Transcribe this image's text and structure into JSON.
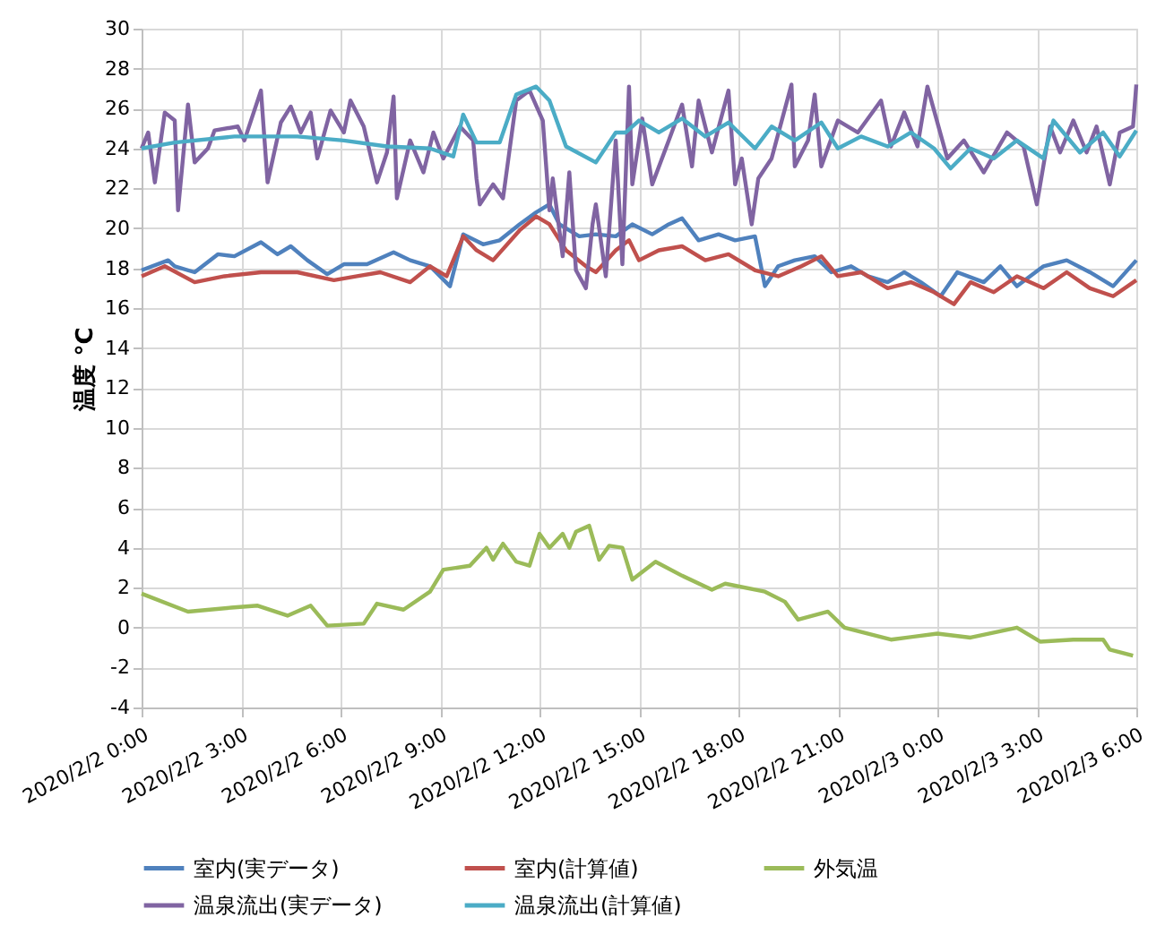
{
  "chart_data": {
    "type": "line",
    "ylabel": "温度 °C",
    "xlim": [
      "2020-02-02T00:00",
      "2020-02-03T06:00"
    ],
    "ylim": [
      -4,
      30
    ],
    "xticks": [
      {
        "value": "2020-02-02T00:00",
        "label": "2020/2/2 0:00"
      },
      {
        "value": "2020-02-02T03:00",
        "label": "2020/2/2 3:00"
      },
      {
        "value": "2020-02-02T06:00",
        "label": "2020/2/2 6:00"
      },
      {
        "value": "2020-02-02T09:00",
        "label": "2020/2/2 9:00"
      },
      {
        "value": "2020-02-02T12:00",
        "label": "2020/2/2 12:00"
      },
      {
        "value": "2020-02-02T15:00",
        "label": "2020/2/2 15:00"
      },
      {
        "value": "2020-02-02T18:00",
        "label": "2020/2/2 18:00"
      },
      {
        "value": "2020-02-02T21:00",
        "label": "2020/2/2 21:00"
      },
      {
        "value": "2020-02-03T00:00",
        "label": "2020/2/3 0:00"
      },
      {
        "value": "2020-02-03T03:00",
        "label": "2020/2/3 3:00"
      },
      {
        "value": "2020-02-03T06:00",
        "label": "2020/2/3 6:00"
      }
    ],
    "yticks": [
      -4,
      -2,
      0,
      2,
      4,
      6,
      8,
      10,
      12,
      14,
      16,
      18,
      20,
      22,
      24,
      26,
      28,
      30
    ],
    "grid": true,
    "legend": "bottom",
    "line_style": "solid",
    "series": [
      {
        "name": "室内(実データ)",
        "color": "#4f81bd",
        "x": [
          "2020-02-02T00:00",
          "2020-02-02T00:48",
          "2020-02-02T01:00",
          "2020-02-02T01:36",
          "2020-02-02T02:18",
          "2020-02-02T02:48",
          "2020-02-02T03:36",
          "2020-02-02T04:06",
          "2020-02-02T04:30",
          "2020-02-02T05:00",
          "2020-02-02T05:36",
          "2020-02-02T06:06",
          "2020-02-02T06:48",
          "2020-02-02T07:36",
          "2020-02-02T08:06",
          "2020-02-02T08:42",
          "2020-02-02T09:18",
          "2020-02-02T09:42",
          "2020-02-02T10:18",
          "2020-02-02T10:48",
          "2020-02-02T11:24",
          "2020-02-02T11:54",
          "2020-02-02T12:18",
          "2020-02-02T12:36",
          "2020-02-02T13:12",
          "2020-02-02T13:42",
          "2020-02-02T14:18",
          "2020-02-02T14:48",
          "2020-02-02T15:24",
          "2020-02-02T15:54",
          "2020-02-02T16:18",
          "2020-02-02T16:48",
          "2020-02-02T17:24",
          "2020-02-02T17:54",
          "2020-02-02T18:30",
          "2020-02-02T18:48",
          "2020-02-02T19:12",
          "2020-02-02T19:42",
          "2020-02-02T20:18",
          "2020-02-02T20:48",
          "2020-02-02T21:24",
          "2020-02-02T21:54",
          "2020-02-02T22:30",
          "2020-02-02T23:00",
          "2020-02-02T23:30",
          "2020-02-03T00:06",
          "2020-02-03T00:36",
          "2020-02-03T01:24",
          "2020-02-03T01:54",
          "2020-02-03T02:24",
          "2020-02-03T03:12",
          "2020-02-03T03:54",
          "2020-02-03T04:36",
          "2020-02-03T05:18",
          "2020-02-03T06:00"
        ],
        "values": [
          17.9,
          18.4,
          18.1,
          17.8,
          18.7,
          18.6,
          19.3,
          18.7,
          19.1,
          18.4,
          17.7,
          18.2,
          18.2,
          18.8,
          18.4,
          18.1,
          17.1,
          19.7,
          19.2,
          19.4,
          20.2,
          20.8,
          21.2,
          20.2,
          19.6,
          19.7,
          19.6,
          20.2,
          19.7,
          20.2,
          20.5,
          19.4,
          19.7,
          19.4,
          19.6,
          17.1,
          18.1,
          18.4,
          18.6,
          17.8,
          18.1,
          17.6,
          17.3,
          17.8,
          17.3,
          16.6,
          17.8,
          17.3,
          18.1,
          17.1,
          18.1,
          18.4,
          17.8,
          17.1,
          18.4
        ]
      },
      {
        "name": "室内(計算値)",
        "color": "#c0504d",
        "x": [
          "2020-02-02T00:00",
          "2020-02-02T00:42",
          "2020-02-02T01:36",
          "2020-02-02T02:30",
          "2020-02-02T03:36",
          "2020-02-02T04:42",
          "2020-02-02T05:48",
          "2020-02-02T06:30",
          "2020-02-02T07:12",
          "2020-02-02T08:06",
          "2020-02-02T08:42",
          "2020-02-02T09:12",
          "2020-02-02T09:42",
          "2020-02-02T10:06",
          "2020-02-02T10:36",
          "2020-02-02T11:24",
          "2020-02-02T11:54",
          "2020-02-02T12:18",
          "2020-02-02T12:48",
          "2020-02-02T13:24",
          "2020-02-02T13:42",
          "2020-02-02T14:18",
          "2020-02-02T14:42",
          "2020-02-02T15:00",
          "2020-02-02T15:36",
          "2020-02-02T16:18",
          "2020-02-02T17:00",
          "2020-02-02T17:42",
          "2020-02-02T18:30",
          "2020-02-02T19:12",
          "2020-02-02T19:54",
          "2020-02-02T20:30",
          "2020-02-02T21:00",
          "2020-02-02T21:42",
          "2020-02-02T22:30",
          "2020-02-02T23:12",
          "2020-02-02T23:54",
          "2020-02-03T00:30",
          "2020-02-03T01:00",
          "2020-02-03T01:42",
          "2020-02-03T02:24",
          "2020-02-03T03:12",
          "2020-02-03T03:54",
          "2020-02-03T04:36",
          "2020-02-03T05:18",
          "2020-02-03T06:00"
        ],
        "values": [
          17.6,
          18.1,
          17.3,
          17.6,
          17.8,
          17.8,
          17.4,
          17.6,
          17.8,
          17.3,
          18.1,
          17.6,
          19.6,
          18.9,
          18.4,
          19.9,
          20.6,
          20.2,
          18.9,
          18.1,
          17.8,
          18.9,
          19.4,
          18.4,
          18.9,
          19.1,
          18.4,
          18.7,
          17.9,
          17.6,
          18.1,
          18.6,
          17.6,
          17.8,
          17.0,
          17.3,
          16.8,
          16.2,
          17.3,
          16.8,
          17.6,
          17.0,
          17.8,
          17.0,
          16.6,
          17.4
        ]
      },
      {
        "name": "外気温",
        "color": "#9bbb59",
        "x": [
          "2020-02-02T00:00",
          "2020-02-02T01:24",
          "2020-02-02T02:42",
          "2020-02-02T03:30",
          "2020-02-02T04:24",
          "2020-02-02T05:06",
          "2020-02-02T05:36",
          "2020-02-02T06:42",
          "2020-02-02T07:06",
          "2020-02-02T07:54",
          "2020-02-02T08:42",
          "2020-02-02T09:06",
          "2020-02-02T09:54",
          "2020-02-02T10:24",
          "2020-02-02T10:36",
          "2020-02-02T10:54",
          "2020-02-02T11:18",
          "2020-02-02T11:42",
          "2020-02-02T12:00",
          "2020-02-02T12:18",
          "2020-02-02T12:42",
          "2020-02-02T12:54",
          "2020-02-02T13:06",
          "2020-02-02T13:30",
          "2020-02-02T13:48",
          "2020-02-02T14:06",
          "2020-02-02T14:30",
          "2020-02-02T14:48",
          "2020-02-02T15:30",
          "2020-02-02T16:18",
          "2020-02-02T17:12",
          "2020-02-02T17:36",
          "2020-02-02T18:48",
          "2020-02-02T19:24",
          "2020-02-02T19:48",
          "2020-02-02T20:42",
          "2020-02-02T21:12",
          "2020-02-02T22:36",
          "2020-02-03T00:00",
          "2020-02-03T01:00",
          "2020-02-03T02:24",
          "2020-02-03T03:06",
          "2020-02-03T04:06",
          "2020-02-03T05:00",
          "2020-02-03T05:12",
          "2020-02-03T05:54"
        ],
        "values": [
          1.7,
          0.8,
          1.0,
          1.1,
          0.6,
          1.1,
          0.1,
          0.2,
          1.2,
          0.9,
          1.8,
          2.9,
          3.1,
          4.0,
          3.4,
          4.2,
          3.3,
          3.1,
          4.7,
          4.0,
          4.7,
          4.0,
          4.8,
          5.1,
          3.4,
          4.1,
          4.0,
          2.4,
          3.3,
          2.6,
          1.9,
          2.2,
          1.8,
          1.3,
          0.4,
          0.8,
          0,
          -0.6,
          -0.3,
          -0.5,
          0,
          -0.7,
          -0.6,
          -0.6,
          -1.1,
          -1.4
        ]
      },
      {
        "name": "温泉流出(実データ)",
        "color": "#8064a2",
        "x": [
          "2020-02-02T00:00",
          "2020-02-02T00:12",
          "2020-02-02T00:24",
          "2020-02-02T00:42",
          "2020-02-02T01:00",
          "2020-02-02T01:06",
          "2020-02-02T01:24",
          "2020-02-02T01:36",
          "2020-02-02T02:00",
          "2020-02-02T02:12",
          "2020-02-02T02:54",
          "2020-02-02T03:06",
          "2020-02-02T03:36",
          "2020-02-02T03:48",
          "2020-02-02T04:12",
          "2020-02-02T04:30",
          "2020-02-02T04:48",
          "2020-02-02T05:06",
          "2020-02-02T05:18",
          "2020-02-02T05:42",
          "2020-02-02T06:06",
          "2020-02-02T06:18",
          "2020-02-02T06:42",
          "2020-02-02T07:06",
          "2020-02-02T07:24",
          "2020-02-02T07:36",
          "2020-02-02T07:42",
          "2020-02-02T08:06",
          "2020-02-02T08:30",
          "2020-02-02T08:48",
          "2020-02-02T09:06",
          "2020-02-02T09:36",
          "2020-02-02T10:00",
          "2020-02-02T10:06",
          "2020-02-02T10:12",
          "2020-02-02T10:36",
          "2020-02-02T10:54",
          "2020-02-02T11:18",
          "2020-02-02T11:42",
          "2020-02-02T12:06",
          "2020-02-02T12:18",
          "2020-02-02T12:24",
          "2020-02-02T12:42",
          "2020-02-02T12:54",
          "2020-02-02T13:06",
          "2020-02-02T13:24",
          "2020-02-02T13:36",
          "2020-02-02T13:42",
          "2020-02-02T14:00",
          "2020-02-02T14:18",
          "2020-02-02T14:30",
          "2020-02-02T14:42",
          "2020-02-02T14:48",
          "2020-02-02T15:06",
          "2020-02-02T15:24",
          "2020-02-02T15:54",
          "2020-02-02T16:18",
          "2020-02-02T16:36",
          "2020-02-02T16:48",
          "2020-02-02T17:12",
          "2020-02-02T17:42",
          "2020-02-02T17:54",
          "2020-02-02T18:06",
          "2020-02-02T18:24",
          "2020-02-02T18:36",
          "2020-02-02T19:00",
          "2020-02-02T19:36",
          "2020-02-02T19:42",
          "2020-02-02T20:06",
          "2020-02-02T20:18",
          "2020-02-02T20:30",
          "2020-02-02T21:00",
          "2020-02-02T21:36",
          "2020-02-02T22:18",
          "2020-02-02T22:36",
          "2020-02-02T23:00",
          "2020-02-02T23:24",
          "2020-02-02T23:42",
          "2020-02-03T00:18",
          "2020-02-03T00:48",
          "2020-02-03T01:24",
          "2020-02-03T02:06",
          "2020-02-03T02:36",
          "2020-02-03T03:00",
          "2020-02-03T03:24",
          "2020-02-03T03:42",
          "2020-02-03T04:06",
          "2020-02-03T04:30",
          "2020-02-03T04:48",
          "2020-02-03T05:12",
          "2020-02-03T05:30",
          "2020-02-03T05:54",
          "2020-02-03T06:00"
        ],
        "values": [
          24.0,
          24.8,
          22.3,
          25.8,
          25.4,
          20.9,
          26.2,
          23.3,
          24.0,
          24.9,
          25.1,
          24.4,
          26.9,
          22.3,
          25.3,
          26.1,
          24.8,
          25.8,
          23.5,
          25.9,
          24.8,
          26.4,
          25.1,
          22.3,
          23.8,
          26.6,
          21.5,
          24.4,
          22.8,
          24.8,
          23.5,
          25.1,
          24.4,
          22.5,
          21.2,
          22.2,
          21.5,
          26.4,
          26.9,
          25.4,
          20.9,
          22.5,
          18.6,
          22.8,
          17.9,
          17.0,
          20.2,
          21.2,
          17.6,
          24.4,
          18.2,
          27.1,
          22.2,
          25.5,
          22.2,
          24.4,
          26.2,
          23.1,
          26.4,
          23.8,
          26.9,
          22.2,
          23.5,
          20.2,
          22.5,
          23.5,
          27.2,
          23.1,
          24.4,
          26.7,
          23.1,
          25.4,
          24.8,
          26.4,
          24.1,
          25.8,
          24.1,
          27.1,
          23.5,
          24.4,
          22.8,
          24.8,
          24.1,
          21.2,
          25.1,
          23.8,
          25.4,
          23.8,
          25.1,
          22.2,
          24.8,
          25.1,
          27.2
        ]
      },
      {
        "name": "温泉流出(計算値)",
        "color": "#4bacc6",
        "x": [
          "2020-02-02T00:00",
          "2020-02-02T01:00",
          "2020-02-02T02:48",
          "2020-02-02T04:42",
          "2020-02-02T06:06",
          "2020-02-02T07:24",
          "2020-02-02T08:42",
          "2020-02-02T09:24",
          "2020-02-02T09:42",
          "2020-02-02T10:06",
          "2020-02-02T10:48",
          "2020-02-02T11:18",
          "2020-02-02T11:54",
          "2020-02-02T12:18",
          "2020-02-02T12:48",
          "2020-02-02T13:42",
          "2020-02-02T14:18",
          "2020-02-02T14:36",
          "2020-02-02T15:00",
          "2020-02-02T15:36",
          "2020-02-02T16:18",
          "2020-02-02T17:00",
          "2020-02-02T17:42",
          "2020-02-02T18:30",
          "2020-02-02T19:00",
          "2020-02-02T19:42",
          "2020-02-02T20:30",
          "2020-02-02T21:00",
          "2020-02-02T21:42",
          "2020-02-02T22:30",
          "2020-02-02T23:12",
          "2020-02-02T23:54",
          "2020-02-03T00:24",
          "2020-02-03T01:00",
          "2020-02-03T01:42",
          "2020-02-03T02:24",
          "2020-02-03T03:12",
          "2020-02-03T03:30",
          "2020-02-03T04:18",
          "2020-02-03T05:00",
          "2020-02-03T05:30",
          "2020-02-03T06:00"
        ],
        "values": [
          24.0,
          24.3,
          24.6,
          24.6,
          24.4,
          24.1,
          24.0,
          23.6,
          25.7,
          24.3,
          24.3,
          26.7,
          27.1,
          26.4,
          24.1,
          23.3,
          24.8,
          24.8,
          25.4,
          24.8,
          25.5,
          24.6,
          25.3,
          24.0,
          25.1,
          24.4,
          25.3,
          24.0,
          24.6,
          24.1,
          24.8,
          24.0,
          23.0,
          24.0,
          23.5,
          24.4,
          23.5,
          25.4,
          23.8,
          24.8,
          23.6,
          24.9
        ]
      }
    ]
  }
}
